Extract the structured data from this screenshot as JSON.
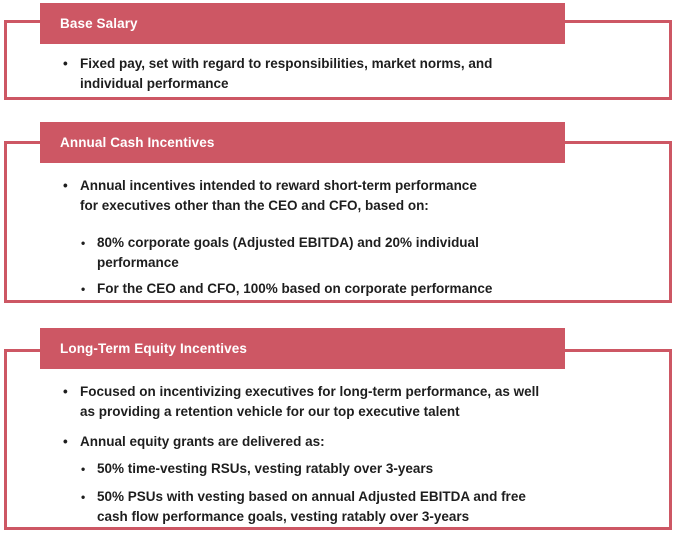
{
  "colors": {
    "accent": "#CD5764",
    "banner_text": "#FFFFFF",
    "body_text": "#1E1E1E",
    "background": "#FFFFFF"
  },
  "sections": [
    {
      "title": "Base Salary",
      "items": [
        {
          "level": 1,
          "text": "Fixed pay, set with regard to responsibilities, market norms, and\nindividual performance"
        }
      ]
    },
    {
      "title": "Annual Cash Incentives",
      "items": [
        {
          "level": 1,
          "text": "Annual incentives intended to reward short-term performance\nfor executives other than the CEO and CFO, based on:"
        },
        {
          "level": 2,
          "text": "80% corporate goals (Adjusted EBITDA) and 20% individual\nperformance"
        },
        {
          "level": 2,
          "text": "For the CEO and CFO, 100% based on corporate performance"
        }
      ]
    },
    {
      "title": "Long-Term Equity Incentives",
      "items": [
        {
          "level": 1,
          "text": "Focused on incentivizing executives for long-term performance, as well\nas providing a retention vehicle for our top executive talent"
        },
        {
          "level": 1,
          "text": "Annual equity grants are delivered as:"
        },
        {
          "level": 2,
          "text": "50% time-vesting RSUs, vesting ratably over 3-years"
        },
        {
          "level": 2,
          "text": "50% PSUs with vesting based on annual Adjusted EBITDA and free\ncash flow performance goals, vesting ratably over 3-years"
        }
      ]
    }
  ]
}
